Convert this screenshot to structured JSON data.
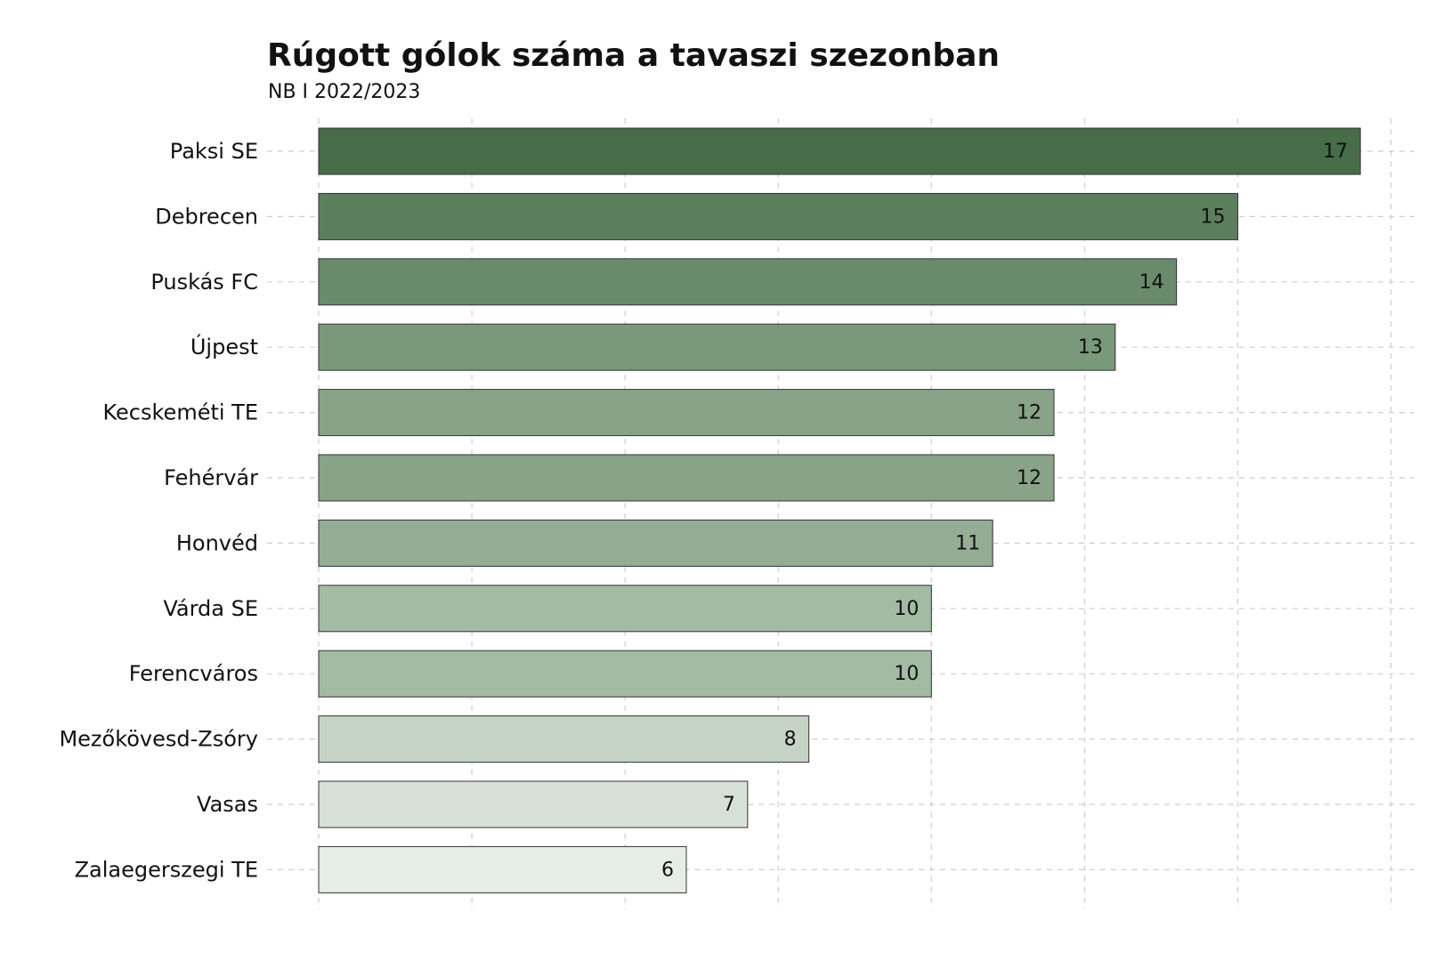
{
  "chart_data": {
    "type": "barh",
    "title": "Rúgott gólok száma a tavaszi szezonban",
    "subtitle": "NB I 2022/2023",
    "categories": [
      "Paksi SE",
      "Debrecen",
      "Puskás FC",
      "Újpest",
      "Kecskeméti TE",
      "Fehérvár",
      "Honvéd",
      "Várda SE",
      "Ferencváros",
      "Mezőkövesd-Zsóry",
      "Vasas",
      "Zalaegerszegi TE"
    ],
    "values": [
      17,
      15,
      14,
      13,
      12,
      12,
      11,
      10,
      10,
      8,
      7,
      6
    ],
    "colors": [
      "#466c48",
      "#5b7f5d",
      "#6a8b6b",
      "#7a987a",
      "#88a387",
      "#88a387",
      "#94ad94",
      "#a3baa3",
      "#a3baa3",
      "#c5d4c5",
      "#d8e1d8",
      "#e6ece6"
    ],
    "xlim": [
      0,
      18
    ],
    "xticks": [
      0,
      2.5,
      5,
      7.5,
      10,
      12.5,
      15,
      17.5
    ],
    "grid": true
  }
}
